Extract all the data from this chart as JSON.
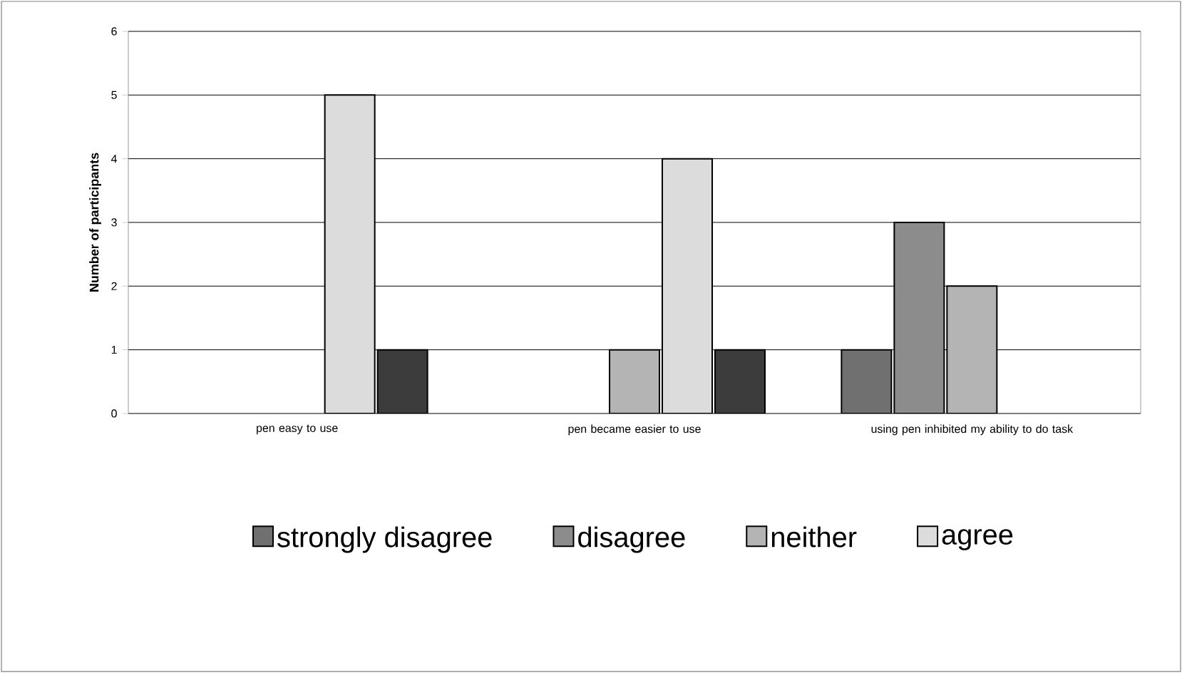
{
  "chart_data": {
    "type": "bar",
    "ylabel": "Number of participants",
    "categories": [
      "pen easy to use",
      "pen became easier to use",
      "using pen inhibited my ability to do task"
    ],
    "series": [
      {
        "name": "strongly disagree",
        "color": "#707070",
        "values": [
          0,
          0,
          1
        ]
      },
      {
        "name": "disagree",
        "color": "#8c8c8c",
        "values": [
          0,
          0,
          3
        ]
      },
      {
        "name": "neither",
        "color": "#b4b4b4",
        "values": [
          0,
          1,
          2
        ]
      },
      {
        "name": "agree",
        "color": "#dcdcdc",
        "values": [
          5,
          4,
          0
        ]
      },
      {
        "color": "#3c3c3c",
        "values": [
          1,
          1,
          0
        ]
      }
    ],
    "ylim": [
      0,
      6
    ],
    "yticks": [
      0,
      1,
      2,
      3,
      4,
      5,
      6
    ],
    "grid": "y",
    "legend": "bottom"
  }
}
